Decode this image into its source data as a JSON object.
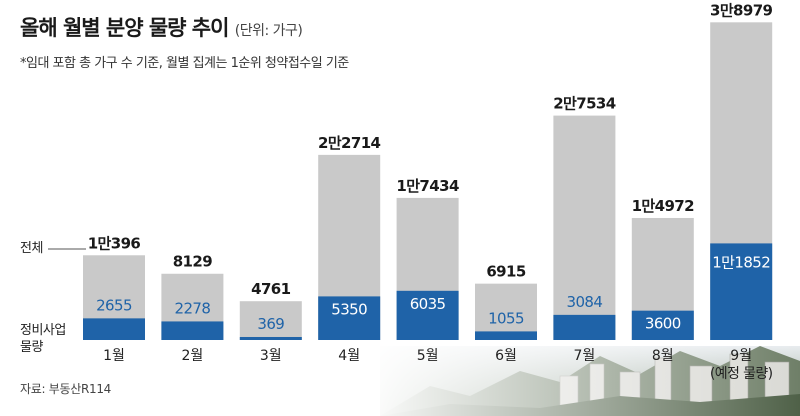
{
  "title": "올해 월별 분양 물량 추이",
  "unit": "(단위: 가구)",
  "note": "*임대 포함 총 가구 수 기준, 월별 집계는 1순위 청약접수일 기준",
  "source": "자료: 부동산R114",
  "legend": {
    "total_label": "전체",
    "redev_label_line1": "정비사업",
    "redev_label_line2": "물량"
  },
  "colors": {
    "total": "#c9c9c9",
    "redevelopment": "#1f63a8",
    "redev_text": "#1f63a8",
    "redev_text_on_dark": "#ffffff"
  },
  "chart_data": {
    "type": "bar",
    "stacked": "overlay",
    "categories": [
      "1월",
      "2월",
      "3월",
      "4월",
      "5월",
      "6월",
      "7월",
      "8월",
      "9월"
    ],
    "category_sub": [
      "",
      "",
      "",
      "",
      "",
      "",
      "",
      "",
      "(예정 물량)"
    ],
    "series": [
      {
        "name": "전체",
        "values": [
          10396,
          8129,
          4761,
          22714,
          17434,
          6915,
          27534,
          14972,
          38979
        ],
        "labels": [
          "1만396",
          "8129",
          "4761",
          "2만2714",
          "1만7434",
          "6915",
          "2만7534",
          "1만4972",
          "3만8979"
        ]
      },
      {
        "name": "정비사업 물량",
        "values": [
          2655,
          2278,
          369,
          5350,
          6035,
          1055,
          3084,
          3600,
          11852
        ],
        "labels": [
          "2655",
          "2278",
          "369",
          "5350",
          "6035",
          "1055",
          "3084",
          "3600",
          "1만1852"
        ]
      }
    ],
    "ylim": [
      0,
      40000
    ],
    "grid": false,
    "legend": "left"
  }
}
